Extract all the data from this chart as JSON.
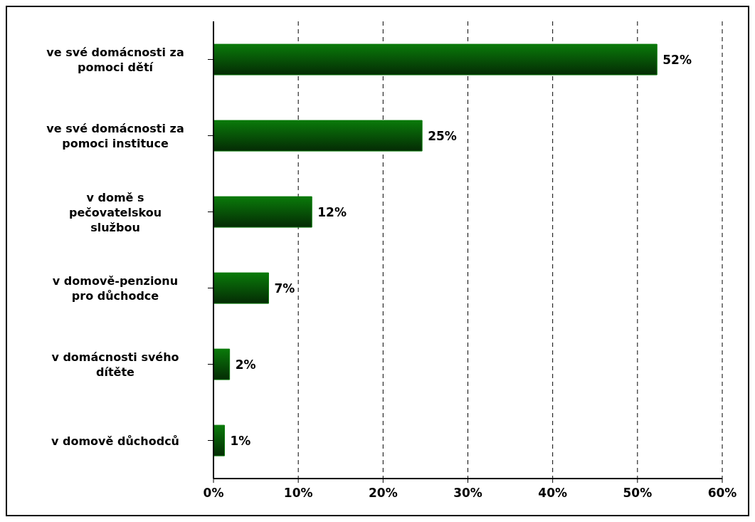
{
  "chart_data": {
    "type": "bar",
    "orientation": "horizontal",
    "categories": [
      "ve své domácnosti za pomoci dětí",
      "ve své domácnosti za pomoci instituce",
      "v domě s pečovatelskou službou",
      "v domově-penzionu pro důchodce",
      "v domácnosti svého dítěte",
      "v domově důchodců"
    ],
    "values": [
      52.3,
      24.6,
      11.6,
      6.5,
      1.9,
      1.3
    ],
    "value_labels": [
      "52%",
      "25%",
      "12%",
      "7%",
      "2%",
      "1%"
    ],
    "color": "#0a7a0a",
    "xlim": [
      0,
      60
    ],
    "xticks": [
      {
        "value": 0,
        "label": "0%"
      },
      {
        "value": 10,
        "label": "10%"
      },
      {
        "value": 20,
        "label": "20%"
      },
      {
        "value": 30,
        "label": "30%"
      },
      {
        "value": 40,
        "label": "40%"
      },
      {
        "value": 50,
        "label": "50%"
      },
      {
        "value": 60,
        "label": "60%"
      }
    ],
    "grid": "x"
  }
}
